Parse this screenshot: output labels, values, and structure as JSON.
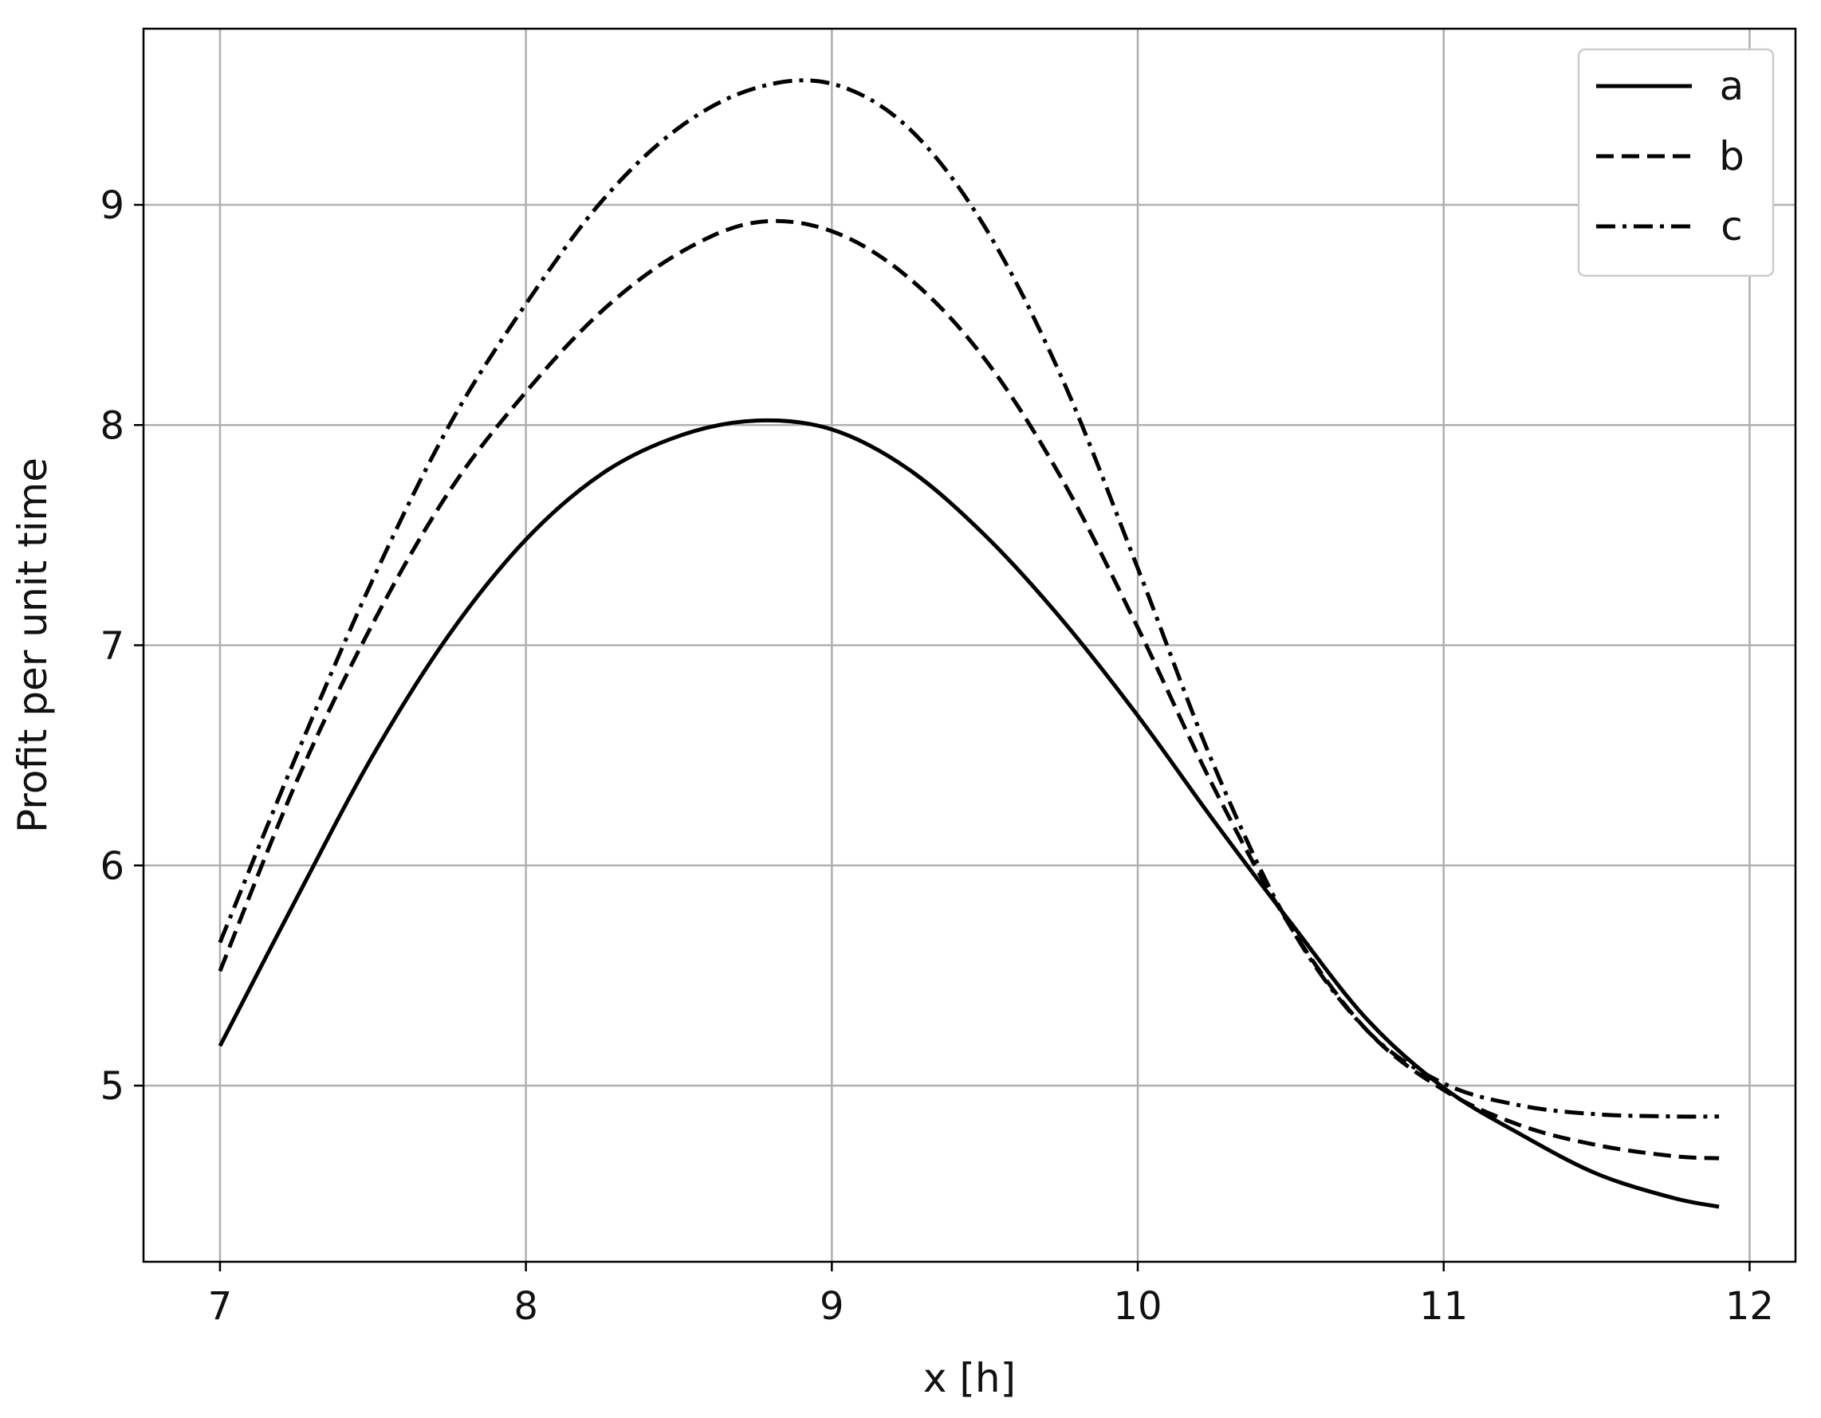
{
  "chart_data": {
    "type": "line",
    "title": "",
    "xlabel": "x [h]",
    "ylabel": "Profit per unit time",
    "xlim": [
      6.75,
      12.15
    ],
    "ylim": [
      4.2,
      9.8
    ],
    "xticks": [
      7,
      8,
      9,
      10,
      11,
      12
    ],
    "yticks": [
      5,
      6,
      7,
      8,
      9
    ],
    "grid": true,
    "legend_position": "top-right",
    "series": [
      {
        "name": "a",
        "style": "solid",
        "color": "#000000",
        "x": [
          7.0,
          7.25,
          7.5,
          7.75,
          8.0,
          8.25,
          8.5,
          8.75,
          9.0,
          9.25,
          9.5,
          9.75,
          10.0,
          10.25,
          10.5,
          10.75,
          11.0,
          11.25,
          11.5,
          11.75,
          11.9
        ],
        "y": [
          5.18,
          5.85,
          6.5,
          7.05,
          7.48,
          7.78,
          7.95,
          8.02,
          7.98,
          7.8,
          7.5,
          7.12,
          6.68,
          6.2,
          5.74,
          5.3,
          4.99,
          4.78,
          4.6,
          4.49,
          4.45
        ]
      },
      {
        "name": "b",
        "style": "dashed",
        "color": "#000000",
        "x": [
          7.0,
          7.25,
          7.5,
          7.75,
          8.0,
          8.25,
          8.5,
          8.75,
          9.0,
          9.25,
          9.5,
          9.75,
          10.0,
          10.25,
          10.5,
          10.75,
          11.0,
          11.25,
          11.5,
          11.75,
          11.9
        ],
        "y": [
          5.52,
          6.38,
          7.1,
          7.7,
          8.15,
          8.52,
          8.78,
          8.92,
          8.88,
          8.67,
          8.3,
          7.76,
          7.08,
          6.35,
          5.72,
          5.25,
          4.98,
          4.82,
          4.73,
          4.68,
          4.67
        ]
      },
      {
        "name": "c",
        "style": "dashdot",
        "color": "#000000",
        "x": [
          7.0,
          7.25,
          7.5,
          7.75,
          8.0,
          8.25,
          8.5,
          8.75,
          9.0,
          9.25,
          9.5,
          9.75,
          10.0,
          10.25,
          10.5,
          10.75,
          11.0,
          11.25,
          11.5,
          11.75,
          11.9
        ],
        "y": [
          5.65,
          6.5,
          7.3,
          8.0,
          8.55,
          9.02,
          9.35,
          9.53,
          9.55,
          9.35,
          8.9,
          8.22,
          7.35,
          6.45,
          5.72,
          5.25,
          5.01,
          4.91,
          4.87,
          4.86,
          4.86
        ]
      }
    ]
  }
}
